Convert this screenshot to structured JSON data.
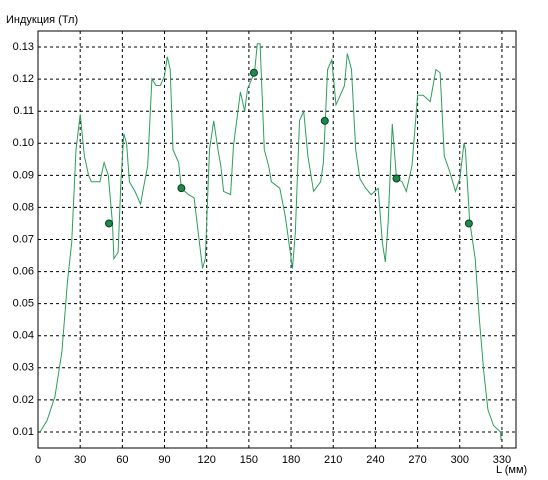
{
  "chart_data": {
    "type": "line",
    "y_label": "Индукция (Тл)",
    "x_label": "L (мм)",
    "xlim": [
      0,
      340
    ],
    "ylim": [
      0.005,
      0.135
    ],
    "xticks": [
      0,
      30,
      60,
      90,
      120,
      150,
      180,
      210,
      240,
      270,
      300,
      330
    ],
    "yticks": [
      0.01,
      0.02,
      0.03,
      0.04,
      0.05,
      0.06,
      0.07,
      0.08,
      0.09,
      {
        "value": 0.1,
        "label": "0.10"
      },
      0.11,
      0.12,
      0.13
    ],
    "grid": true,
    "series": [
      {
        "color": "#2e9e5e",
        "style": "line",
        "x": [
          1.4,
          6.4,
          12,
          17,
          21,
          24,
          27,
          30,
          33,
          36,
          38,
          41,
          44,
          47,
          50,
          53,
          54,
          57,
          59,
          61,
          63,
          65,
          69,
          73,
          75,
          78,
          81,
          84,
          87,
          90,
          92,
          94,
          96,
          100,
          102,
          107,
          111,
          114,
          117,
          119,
          122,
          125,
          128,
          130,
          132,
          137,
          139,
          144,
          147,
          149,
          154,
          156,
          158,
          161,
          164,
          166,
          172,
          176,
          181,
          183,
          186,
          189,
          192,
          196,
          201,
          203,
          206,
          209,
          212,
          215,
          218,
          220,
          223,
          226,
          229,
          233,
          237,
          242,
          245,
          247,
          249,
          252,
          255,
          259,
          262,
          266,
          270,
          274,
          279,
          283,
          286,
          289,
          293,
          297,
          300,
          303,
          304,
          307,
          311,
          314,
          317,
          320,
          324,
          329,
          329.3
        ],
        "values": [
          0.01,
          0.0135,
          0.021,
          0.035,
          0.057,
          0.069,
          0.098,
          0.109,
          0.096,
          0.09,
          0.088,
          0.088,
          0.088,
          0.094,
          0.09,
          0.075,
          0.064,
          0.066,
          0.088,
          0.103,
          0.1,
          0.088,
          0.085,
          0.081,
          0.086,
          0.093,
          0.12,
          0.118,
          0.118,
          0.121,
          0.127,
          0.123,
          0.098,
          0.094,
          0.086,
          0.084,
          0.083,
          0.072,
          0.061,
          0.064,
          0.098,
          0.107,
          0.098,
          0.093,
          0.085,
          0.084,
          0.099,
          0.116,
          0.11,
          0.117,
          0.122,
          0.131,
          0.131,
          0.098,
          0.093,
          0.088,
          0.086,
          0.077,
          0.061,
          0.072,
          0.107,
          0.11,
          0.096,
          0.085,
          0.088,
          0.094,
          0.123,
          0.126,
          0.112,
          0.115,
          0.118,
          0.128,
          0.123,
          0.098,
          0.089,
          0.086,
          0.084,
          0.086,
          0.069,
          0.063,
          0.075,
          0.106,
          0.089,
          0.088,
          0.085,
          0.093,
          0.115,
          0.115,
          0.113,
          0.123,
          0.122,
          0.096,
          0.091,
          0.085,
          0.089,
          0.1,
          0.098,
          0.076,
          0.064,
          0.045,
          0.029,
          0.017,
          0.012,
          0.01,
          0.0075
        ]
      },
      {
        "color": "#1e8a4a",
        "style": "markers",
        "x": [
          50.5,
          102,
          153.6,
          204,
          255,
          306.5
        ],
        "values": [
          0.075,
          0.086,
          0.122,
          0.107,
          0.089,
          0.075
        ]
      }
    ]
  }
}
